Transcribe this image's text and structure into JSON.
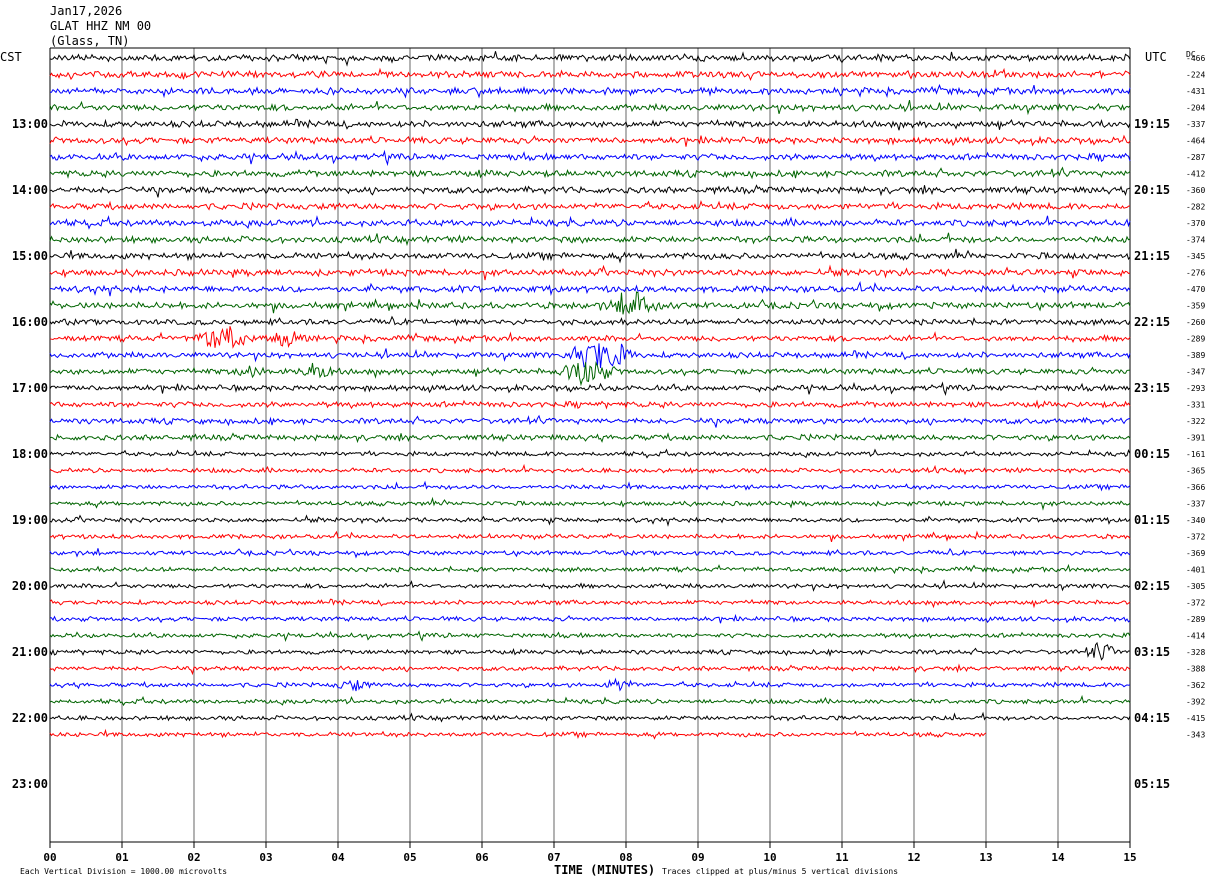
{
  "header": {
    "date": "Jan17,2026",
    "station": "GLAT HHZ NM 00",
    "location": "(Glass, TN)"
  },
  "footer": {
    "scale_note": "Each Vertical Division = 1000.00 microvolts",
    "clip_note": "Traces clipped at plus/minus 5 vertical divisions"
  },
  "chart_data": {
    "type": "line",
    "title": "",
    "xlabel": "TIME (MINUTES)",
    "xlim": [
      0,
      15
    ],
    "x_ticks": [
      "00",
      "01",
      "02",
      "03",
      "04",
      "05",
      "06",
      "07",
      "08",
      "09",
      "10",
      "11",
      "12",
      "13",
      "14",
      "15"
    ],
    "left_axis_label": "CST",
    "right_axis_label": "UTC",
    "dc_header": "DC",
    "left_hour_labels": [
      "13:00",
      "14:00",
      "15:00",
      "16:00",
      "17:00",
      "18:00",
      "19:00",
      "20:00",
      "21:00",
      "22:00",
      "23:00"
    ],
    "right_hour_labels": [
      "19:15",
      "20:15",
      "21:15",
      "22:15",
      "23:15",
      "00:15",
      "01:15",
      "02:15",
      "03:15",
      "04:15",
      "05:15"
    ],
    "trace_colors": [
      "#000000",
      "#ff0000",
      "#0000ff",
      "#006400"
    ],
    "dc_offsets": [
      "-466",
      "-224",
      "-431",
      "-204",
      "-337",
      "-464",
      "-287",
      "-412",
      "-360",
      "-282",
      "-370",
      "-374",
      "-345",
      "-276",
      "-470",
      "-359",
      "-260",
      "-289",
      "-389",
      "-347",
      "-293",
      "-331",
      "-322",
      "-391",
      "-161",
      "-365",
      "-366",
      "-337",
      "-340",
      "-372",
      "-369",
      "-401",
      "-305",
      "-372",
      "-289",
      "-414",
      "-328",
      "-388",
      "-362",
      "-392",
      "-415",
      "-343"
    ],
    "trace_count": 42,
    "last_trace_end_minute": 13,
    "grid": "vertical lines every minute",
    "events": [
      {
        "trace": 15,
        "minute": 8.15,
        "amplitude": "large"
      },
      {
        "trace": 17,
        "minute": 2.4,
        "amplitude": "large"
      },
      {
        "trace": 17,
        "minute": 3.3,
        "amplitude": "medium"
      },
      {
        "trace": 18,
        "minute": 7.55,
        "amplitude": "large"
      },
      {
        "trace": 18,
        "minute": 7.9,
        "amplitude": "medium"
      },
      {
        "trace": 19,
        "minute": 7.45,
        "amplitude": "large"
      },
      {
        "trace": 19,
        "minute": 3.7,
        "amplitude": "medium"
      },
      {
        "trace": 19,
        "minute": 2.8,
        "amplitude": "small"
      },
      {
        "trace": 36,
        "minute": 14.6,
        "amplitude": "medium"
      },
      {
        "trace": 38,
        "minute": 4.2,
        "amplitude": "small"
      },
      {
        "trace": 38,
        "minute": 7.9,
        "amplitude": "small"
      }
    ]
  }
}
